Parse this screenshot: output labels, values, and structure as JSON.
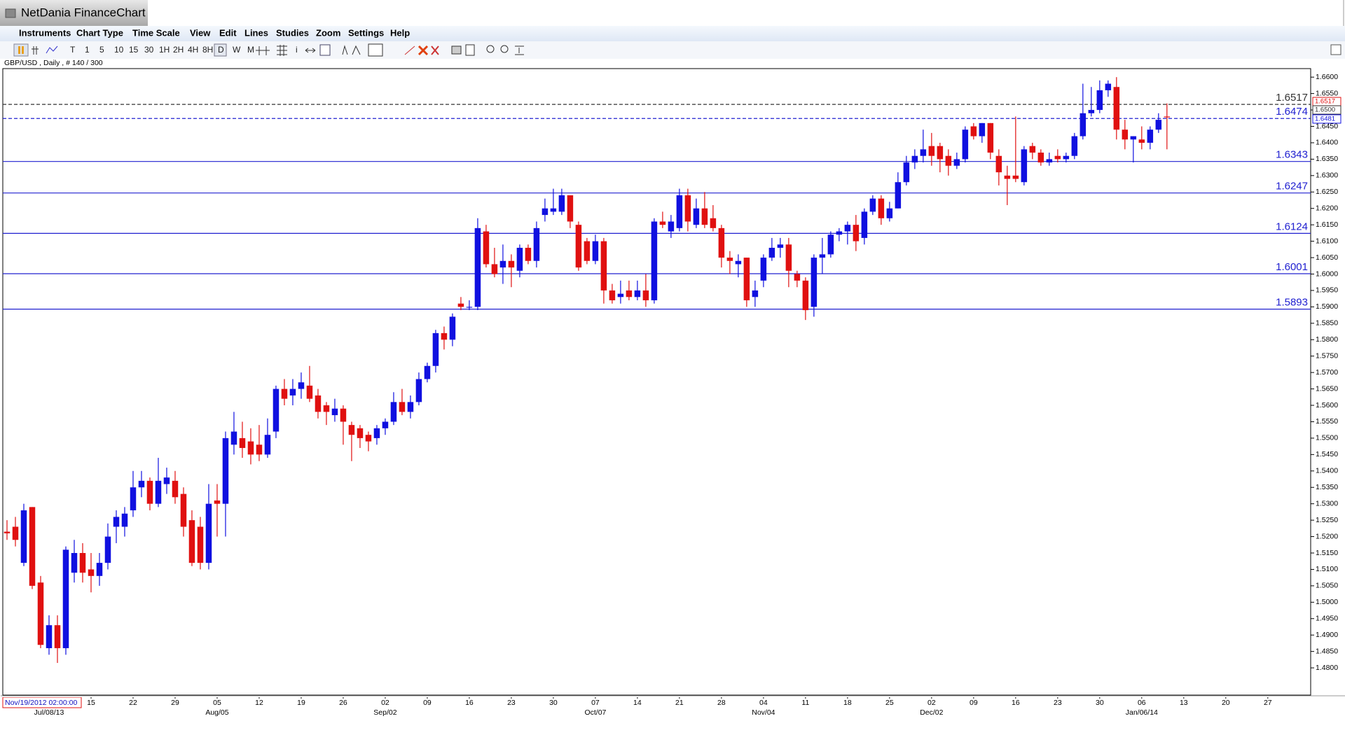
{
  "window": {
    "title": "NetDania FinanceChart"
  },
  "menu": [
    "Instruments",
    "Chart Type",
    "Time Scale",
    "View",
    "Edit",
    "Lines",
    "Studies",
    "Zoom",
    "Settings",
    "Help"
  ],
  "toolbar": [
    "T",
    "1",
    "5",
    "10",
    "15",
    "30",
    "1H",
    "2H",
    "4H",
    "8H",
    "D",
    "W",
    "M"
  ],
  "chart_data": {
    "type": "candlestick",
    "info": "GBP/USD , Daily , # 140 / 300",
    "timestamp": "Nov/19/2012 02:00:00",
    "up_color": "#1010e0",
    "down_color": "#e01010",
    "ylim": [
      1.4717,
      1.6626
    ],
    "xlim": [
      -0.5,
      155.1
    ],
    "grid": false,
    "yticks": [
      {
        "value": 1.66,
        "label": "1.6600"
      },
      {
        "value": 1.655,
        "label": "1.6550"
      },
      {
        "value": 1.65,
        "label": "1.6500"
      },
      {
        "value": 1.645,
        "label": "1.6450"
      },
      {
        "value": 1.64,
        "label": "1.6400"
      },
      {
        "value": 1.635,
        "label": "1.6350"
      },
      {
        "value": 1.63,
        "label": "1.6300"
      },
      {
        "value": 1.625,
        "label": "1.6250"
      },
      {
        "value": 1.62,
        "label": "1.6200"
      },
      {
        "value": 1.615,
        "label": "1.6150"
      },
      {
        "value": 1.61,
        "label": "1.6100"
      },
      {
        "value": 1.605,
        "label": "1.6050"
      },
      {
        "value": 1.6,
        "label": "1.6000"
      },
      {
        "value": 1.595,
        "label": "1.5950"
      },
      {
        "value": 1.59,
        "label": "1.5900"
      },
      {
        "value": 1.585,
        "label": "1.5850"
      },
      {
        "value": 1.58,
        "label": "1.5800"
      },
      {
        "value": 1.575,
        "label": "1.5750"
      },
      {
        "value": 1.57,
        "label": "1.5700"
      },
      {
        "value": 1.565,
        "label": "1.5650"
      },
      {
        "value": 1.56,
        "label": "1.5600"
      },
      {
        "value": 1.555,
        "label": "1.5550"
      },
      {
        "value": 1.55,
        "label": "1.5500"
      },
      {
        "value": 1.545,
        "label": "1.5450"
      },
      {
        "value": 1.54,
        "label": "1.5400"
      },
      {
        "value": 1.535,
        "label": "1.5350"
      },
      {
        "value": 1.53,
        "label": "1.5300"
      },
      {
        "value": 1.525,
        "label": "1.5250"
      },
      {
        "value": 1.52,
        "label": "1.5200"
      },
      {
        "value": 1.515,
        "label": "1.5150"
      },
      {
        "value": 1.51,
        "label": "1.5100"
      },
      {
        "value": 1.505,
        "label": "1.5050"
      },
      {
        "value": 1.5,
        "label": "1.5000"
      },
      {
        "value": 1.495,
        "label": "1.4950"
      },
      {
        "value": 1.49,
        "label": "1.4900"
      },
      {
        "value": 1.485,
        "label": "1.4850"
      },
      {
        "value": 1.48,
        "label": "1.4800"
      }
    ],
    "xticks": [
      {
        "value": 10,
        "label": "15"
      },
      {
        "value": 15,
        "label": "22"
      },
      {
        "value": 20,
        "label": "29"
      },
      {
        "value": 25,
        "label": "05"
      },
      {
        "value": 30,
        "label": "12"
      },
      {
        "value": 35,
        "label": "19"
      },
      {
        "value": 40,
        "label": "26"
      },
      {
        "value": 45,
        "label": "02"
      },
      {
        "value": 50,
        "label": "09"
      },
      {
        "value": 55,
        "label": "16"
      },
      {
        "value": 60,
        "label": "23"
      },
      {
        "value": 65,
        "label": "30"
      },
      {
        "value": 70,
        "label": "07"
      },
      {
        "value": 75,
        "label": "14"
      },
      {
        "value": 80,
        "label": "21"
      },
      {
        "value": 85,
        "label": "28"
      },
      {
        "value": 90,
        "label": "04"
      },
      {
        "value": 95,
        "label": "11"
      },
      {
        "value": 100,
        "label": "18"
      },
      {
        "value": 105,
        "label": "25"
      },
      {
        "value": 110,
        "label": "02"
      },
      {
        "value": 115,
        "label": "09"
      },
      {
        "value": 120,
        "label": "16"
      },
      {
        "value": 125,
        "label": "23"
      },
      {
        "value": 130,
        "label": "30"
      },
      {
        "value": 135,
        "label": "06"
      },
      {
        "value": 140,
        "label": "13"
      },
      {
        "value": 145,
        "label": "20"
      },
      {
        "value": 150,
        "label": "27"
      }
    ],
    "month_ticks": [
      {
        "value": 5,
        "label": "Jul/08/13"
      },
      {
        "value": 25,
        "label": "Aug/05"
      },
      {
        "value": 45,
        "label": "Sep/02"
      },
      {
        "value": 70,
        "label": "Oct/07"
      },
      {
        "value": 90,
        "label": "Nov/04"
      },
      {
        "value": 110,
        "label": "Dec/02"
      },
      {
        "value": 135,
        "label": "Jan/06/14"
      }
    ],
    "levels": [
      {
        "value": 1.6517,
        "color": "#333333",
        "dashed": true
      },
      {
        "value": 1.6474,
        "color": "#2020d0",
        "dashed": true
      },
      {
        "value": 1.6343,
        "color": "#2020d0",
        "dashed": false
      },
      {
        "value": 1.6247,
        "color": "#2020d0",
        "dashed": false
      },
      {
        "value": 1.6124,
        "color": "#2020d0",
        "dashed": false
      },
      {
        "value": 1.6001,
        "color": "#2020d0",
        "dashed": false
      },
      {
        "value": 1.5893,
        "color": "#2020d0",
        "dashed": false
      }
    ],
    "price_boxes": [
      {
        "value": 1.6517,
        "color": "#e01010"
      },
      {
        "value": 1.65,
        "label": "1.6500",
        "color": "#333333"
      },
      {
        "value": 1.6481,
        "color": "#1010e0"
      }
    ],
    "ohlc": [
      [
        1.5215,
        1.525,
        1.519,
        1.521
      ],
      [
        1.523,
        1.526,
        1.517,
        1.519
      ],
      [
        1.512,
        1.53,
        1.511,
        1.528
      ],
      [
        1.529,
        1.529,
        1.504,
        1.505
      ],
      [
        1.506,
        1.508,
        1.486,
        1.487
      ],
      [
        1.486,
        1.496,
        1.484,
        1.493
      ],
      [
        1.493,
        1.496,
        1.4815,
        1.486
      ],
      [
        1.486,
        1.517,
        1.484,
        1.516
      ],
      [
        1.509,
        1.519,
        1.506,
        1.515
      ],
      [
        1.515,
        1.518,
        1.506,
        1.509
      ],
      [
        1.51,
        1.515,
        1.503,
        1.508
      ],
      [
        1.508,
        1.515,
        1.505,
        1.512
      ],
      [
        1.512,
        1.524,
        1.51,
        1.52
      ],
      [
        1.523,
        1.528,
        1.518,
        1.526
      ],
      [
        1.523,
        1.529,
        1.52,
        1.527
      ],
      [
        1.528,
        1.54,
        1.526,
        1.535
      ],
      [
        1.535,
        1.54,
        1.532,
        1.537
      ],
      [
        1.537,
        1.538,
        1.528,
        1.53
      ],
      [
        1.53,
        1.544,
        1.529,
        1.537
      ],
      [
        1.536,
        1.541,
        1.533,
        1.538
      ],
      [
        1.537,
        1.54,
        1.53,
        1.532
      ],
      [
        1.533,
        1.535,
        1.52,
        1.523
      ],
      [
        1.525,
        1.528,
        1.511,
        1.512
      ],
      [
        1.523,
        1.526,
        1.51,
        1.512
      ],
      [
        1.512,
        1.536,
        1.51,
        1.53
      ],
      [
        1.531,
        1.536,
        1.52,
        1.53
      ],
      [
        1.53,
        1.552,
        1.52,
        1.55
      ],
      [
        1.548,
        1.558,
        1.545,
        1.552
      ],
      [
        1.55,
        1.555,
        1.544,
        1.547
      ],
      [
        1.549,
        1.553,
        1.542,
        1.545
      ],
      [
        1.548,
        1.554,
        1.543,
        1.545
      ],
      [
        1.545,
        1.556,
        1.544,
        1.551
      ],
      [
        1.552,
        1.566,
        1.55,
        1.565
      ],
      [
        1.565,
        1.568,
        1.56,
        1.562
      ],
      [
        1.563,
        1.568,
        1.56,
        1.565
      ],
      [
        1.565,
        1.57,
        1.562,
        1.567
      ],
      [
        1.566,
        1.572,
        1.561,
        1.562
      ],
      [
        1.563,
        1.565,
        1.556,
        1.558
      ],
      [
        1.56,
        1.561,
        1.554,
        1.558
      ],
      [
        1.557,
        1.562,
        1.555,
        1.559
      ],
      [
        1.559,
        1.56,
        1.548,
        1.555
      ],
      [
        1.554,
        1.555,
        1.543,
        1.551
      ],
      [
        1.553,
        1.554,
        1.547,
        1.55
      ],
      [
        1.551,
        1.552,
        1.546,
        1.549
      ],
      [
        1.55,
        1.554,
        1.548,
        1.553
      ],
      [
        1.553,
        1.556,
        1.551,
        1.555
      ],
      [
        1.555,
        1.564,
        1.554,
        1.561
      ],
      [
        1.561,
        1.565,
        1.557,
        1.558
      ],
      [
        1.558,
        1.563,
        1.556,
        1.561
      ],
      [
        1.561,
        1.57,
        1.56,
        1.568
      ],
      [
        1.568,
        1.573,
        1.567,
        1.572
      ],
      [
        1.572,
        1.583,
        1.57,
        1.582
      ],
      [
        1.582,
        1.584,
        1.577,
        1.58
      ],
      [
        1.58,
        1.588,
        1.578,
        1.587
      ],
      [
        1.591,
        1.593,
        1.589,
        1.59
      ],
      [
        1.59,
        1.592,
        1.589,
        1.59
      ],
      [
        1.59,
        1.617,
        1.589,
        1.614
      ],
      [
        1.613,
        1.615,
        1.602,
        1.603
      ],
      [
        1.603,
        1.608,
        1.599,
        1.6
      ],
      [
        1.602,
        1.609,
        1.597,
        1.604
      ],
      [
        1.604,
        1.606,
        1.596,
        1.602
      ],
      [
        1.601,
        1.609,
        1.599,
        1.608
      ],
      [
        1.608,
        1.609,
        1.603,
        1.604
      ],
      [
        1.604,
        1.616,
        1.602,
        1.614
      ],
      [
        1.618,
        1.623,
        1.616,
        1.62
      ],
      [
        1.619,
        1.626,
        1.618,
        1.62
      ],
      [
        1.619,
        1.626,
        1.618,
        1.624
      ],
      [
        1.624,
        1.624,
        1.614,
        1.616
      ],
      [
        1.615,
        1.616,
        1.601,
        1.602
      ],
      [
        1.61,
        1.611,
        1.603,
        1.604
      ],
      [
        1.604,
        1.612,
        1.603,
        1.61
      ],
      [
        1.61,
        1.611,
        1.591,
        1.595
      ],
      [
        1.595,
        1.597,
        1.591,
        1.592
      ],
      [
        1.593,
        1.598,
        1.591,
        1.594
      ],
      [
        1.595,
        1.598,
        1.592,
        1.593
      ],
      [
        1.593,
        1.598,
        1.592,
        1.595
      ],
      [
        1.595,
        1.6,
        1.59,
        1.592
      ],
      [
        1.592,
        1.617,
        1.591,
        1.616
      ],
      [
        1.616,
        1.619,
        1.614,
        1.615
      ],
      [
        1.613,
        1.618,
        1.611,
        1.616
      ],
      [
        1.614,
        1.626,
        1.613,
        1.624
      ],
      [
        1.624,
        1.626,
        1.613,
        1.616
      ],
      [
        1.615,
        1.623,
        1.614,
        1.62
      ],
      [
        1.62,
        1.625,
        1.614,
        1.615
      ],
      [
        1.617,
        1.621,
        1.613,
        1.614
      ],
      [
        1.614,
        1.615,
        1.602,
        1.605
      ],
      [
        1.605,
        1.607,
        1.6,
        1.604
      ],
      [
        1.603,
        1.606,
        1.599,
        1.604
      ],
      [
        1.605,
        1.605,
        1.59,
        1.592
      ],
      [
        1.593,
        1.598,
        1.59,
        1.595
      ],
      [
        1.598,
        1.606,
        1.596,
        1.605
      ],
      [
        1.605,
        1.611,
        1.604,
        1.608
      ],
      [
        1.608,
        1.611,
        1.605,
        1.609
      ],
      [
        1.609,
        1.611,
        1.596,
        1.601
      ],
      [
        1.6,
        1.601,
        1.596,
        1.598
      ],
      [
        1.598,
        1.599,
        1.586,
        1.589
      ],
      [
        1.59,
        1.606,
        1.587,
        1.605
      ],
      [
        1.605,
        1.611,
        1.6,
        1.606
      ],
      [
        1.606,
        1.613,
        1.605,
        1.612
      ],
      [
        1.612,
        1.614,
        1.61,
        1.613
      ],
      [
        1.613,
        1.616,
        1.609,
        1.615
      ],
      [
        1.615,
        1.618,
        1.607,
        1.61
      ],
      [
        1.611,
        1.62,
        1.609,
        1.619
      ],
      [
        1.619,
        1.624,
        1.618,
        1.623
      ],
      [
        1.623,
        1.624,
        1.615,
        1.617
      ],
      [
        1.617,
        1.622,
        1.616,
        1.62
      ],
      [
        1.62,
        1.631,
        1.62,
        1.628
      ],
      [
        1.628,
        1.636,
        1.627,
        1.634
      ],
      [
        1.634,
        1.638,
        1.632,
        1.636
      ],
      [
        1.636,
        1.644,
        1.634,
        1.638
      ],
      [
        1.639,
        1.643,
        1.633,
        1.636
      ],
      [
        1.639,
        1.64,
        1.631,
        1.635
      ],
      [
        1.636,
        1.638,
        1.63,
        1.633
      ],
      [
        1.633,
        1.637,
        1.632,
        1.635
      ],
      [
        1.635,
        1.645,
        1.634,
        1.644
      ],
      [
        1.645,
        1.646,
        1.641,
        1.642
      ],
      [
        1.642,
        1.646,
        1.64,
        1.646
      ],
      [
        1.646,
        1.646,
        1.635,
        1.637
      ],
      [
        1.636,
        1.638,
        1.627,
        1.631
      ],
      [
        1.63,
        1.633,
        1.621,
        1.629
      ],
      [
        1.63,
        1.648,
        1.628,
        1.629
      ],
      [
        1.628,
        1.639,
        1.627,
        1.638
      ],
      [
        1.639,
        1.64,
        1.635,
        1.637
      ],
      [
        1.637,
        1.638,
        1.633,
        1.634
      ],
      [
        1.634,
        1.637,
        1.633,
        1.635
      ],
      [
        1.636,
        1.638,
        1.634,
        1.635
      ],
      [
        1.635,
        1.637,
        1.634,
        1.636
      ],
      [
        1.636,
        1.643,
        1.635,
        1.642
      ],
      [
        1.642,
        1.658,
        1.641,
        1.649
      ],
      [
        1.649,
        1.657,
        1.648,
        1.65
      ],
      [
        1.65,
        1.659,
        1.649,
        1.656
      ],
      [
        1.656,
        1.659,
        1.654,
        1.658
      ],
      [
        1.657,
        1.66,
        1.641,
        1.644
      ],
      [
        1.644,
        1.647,
        1.638,
        1.641
      ],
      [
        1.641,
        1.642,
        1.634,
        1.642
      ],
      [
        1.641,
        1.645,
        1.638,
        1.64
      ],
      [
        1.64,
        1.645,
        1.638,
        1.644
      ],
      [
        1.644,
        1.649,
        1.643,
        1.647
      ],
      [
        1.648,
        1.652,
        1.638,
        1.6478
      ]
    ]
  }
}
